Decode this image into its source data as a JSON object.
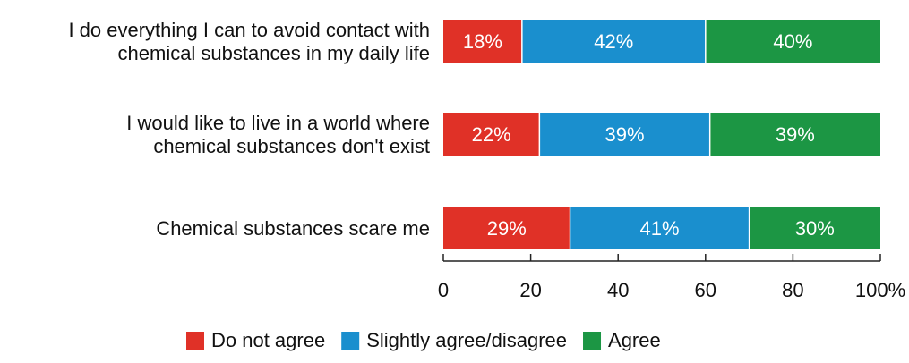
{
  "chart_data": {
    "type": "bar",
    "orientation": "horizontal",
    "stacked": true,
    "categories": [
      [
        "I do everything I can to avoid contact with",
        "chemical substances in my daily life"
      ],
      [
        "I would like to live in a world where",
        "chemical substances don't exist"
      ],
      [
        "Chemical substances scare me"
      ]
    ],
    "series": [
      {
        "name": "Do not agree",
        "values": [
          18,
          22,
          29
        ],
        "labels": [
          "18%",
          "22%",
          "29%"
        ],
        "color": "#e03127"
      },
      {
        "name": "Slightly agree/disagree",
        "values": [
          42,
          39,
          41
        ],
        "labels": [
          "42%",
          "39%",
          "41%"
        ],
        "color": "#1a8fce"
      },
      {
        "name": "Agree",
        "values": [
          40,
          39,
          30
        ],
        "labels": [
          "40%",
          "39%",
          "30%"
        ],
        "color": "#1c9644"
      }
    ],
    "x_ticks": [
      0,
      20,
      40,
      60,
      80,
      100
    ],
    "x_tick_labels": [
      "0",
      "20",
      "40",
      "60",
      "80",
      "100%"
    ],
    "xlim": [
      0,
      100
    ],
    "xlabel": "",
    "ylabel": "",
    "grid": false,
    "legend_position": "bottom"
  }
}
